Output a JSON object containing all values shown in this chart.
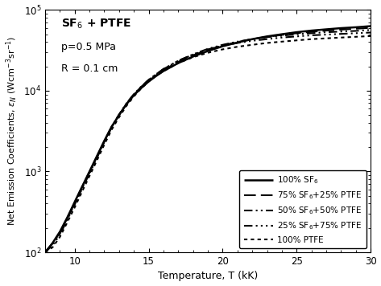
{
  "title_text": "SF$_6$ + PTFE",
  "annotation_p": "p=0.5 MPa",
  "annotation_R": "R = 0.1 cm",
  "xlabel": "Temperature, T (kK)",
  "ylabel": "Net Emission Coefficients, $\\varepsilon_N$ (Wcm$^{-3}$sr$^{-1}$)",
  "xlim": [
    8,
    30
  ],
  "ylim": [
    100,
    100000
  ],
  "legend_labels": [
    "100% SF$_6$",
    "75% SF$_6$+25% PTFE",
    "50% SF$_6$+50% PTFE",
    "25% SF$_6$+75% PTFE",
    "100% PTFE"
  ],
  "linestyles": [
    "solid",
    "dashed",
    "dashdotdot",
    "dashdotdotdot",
    "dotted"
  ],
  "linewidths": [
    1.8,
    1.5,
    1.5,
    1.5,
    1.5
  ],
  "colors": [
    "black",
    "black",
    "black",
    "black",
    "black"
  ],
  "T": [
    8.0,
    8.5,
    9.0,
    9.5,
    10.0,
    10.5,
    11.0,
    11.5,
    12.0,
    12.5,
    13.0,
    13.5,
    14.0,
    14.5,
    15.0,
    15.5,
    16.0,
    17.0,
    18.0,
    19.0,
    20.0,
    21.0,
    22.0,
    23.0,
    24.0,
    25.0,
    26.0,
    27.0,
    28.0,
    29.0,
    30.0
  ],
  "curves": {
    "sf6_100": [
      100,
      130,
      180,
      270,
      420,
      650,
      1000,
      1550,
      2400,
      3600,
      5000,
      6800,
      8800,
      10800,
      13000,
      15200,
      17500,
      22000,
      26500,
      31000,
      35500,
      39500,
      43500,
      47000,
      50000,
      53000,
      55500,
      57500,
      59500,
      61000,
      63000
    ],
    "sf6_75": [
      100,
      128,
      175,
      265,
      410,
      640,
      990,
      1520,
      2350,
      3550,
      5000,
      6900,
      8900,
      11000,
      13200,
      15500,
      18000,
      22800,
      27500,
      32000,
      36500,
      40000,
      43500,
      46500,
      49000,
      51500,
      53500,
      55500,
      57000,
      58500,
      60000
    ],
    "sf6_50": [
      100,
      125,
      170,
      260,
      400,
      625,
      970,
      1500,
      2350,
      3600,
      5100,
      7000,
      9100,
      11300,
      13700,
      16000,
      18500,
      23500,
      28200,
      33000,
      37000,
      40500,
      43500,
      46000,
      48000,
      50000,
      51500,
      53000,
      54000,
      55000,
      56500
    ],
    "sf6_25": [
      100,
      122,
      165,
      252,
      390,
      610,
      945,
      1470,
      2300,
      3520,
      5000,
      6900,
      9000,
      11200,
      13600,
      16000,
      18600,
      23500,
      28000,
      32500,
      36000,
      39000,
      41500,
      43500,
      45500,
      47000,
      48500,
      49500,
      50500,
      51500,
      52500
    ],
    "ptfe_100": [
      100,
      115,
      155,
      235,
      360,
      565,
      880,
      1370,
      2150,
      3300,
      4700,
      6500,
      8500,
      10700,
      13000,
      15300,
      17500,
      22000,
      26000,
      29500,
      32500,
      35000,
      37000,
      39000,
      40500,
      42000,
      43500,
      44500,
      45500,
      46500,
      47500
    ]
  },
  "legend_loc": "lower right",
  "legend_fontsize": 7.5,
  "title_fontsize": 10,
  "annot_fontsize": 9,
  "xlabel_fontsize": 9,
  "ylabel_fontsize": 8
}
